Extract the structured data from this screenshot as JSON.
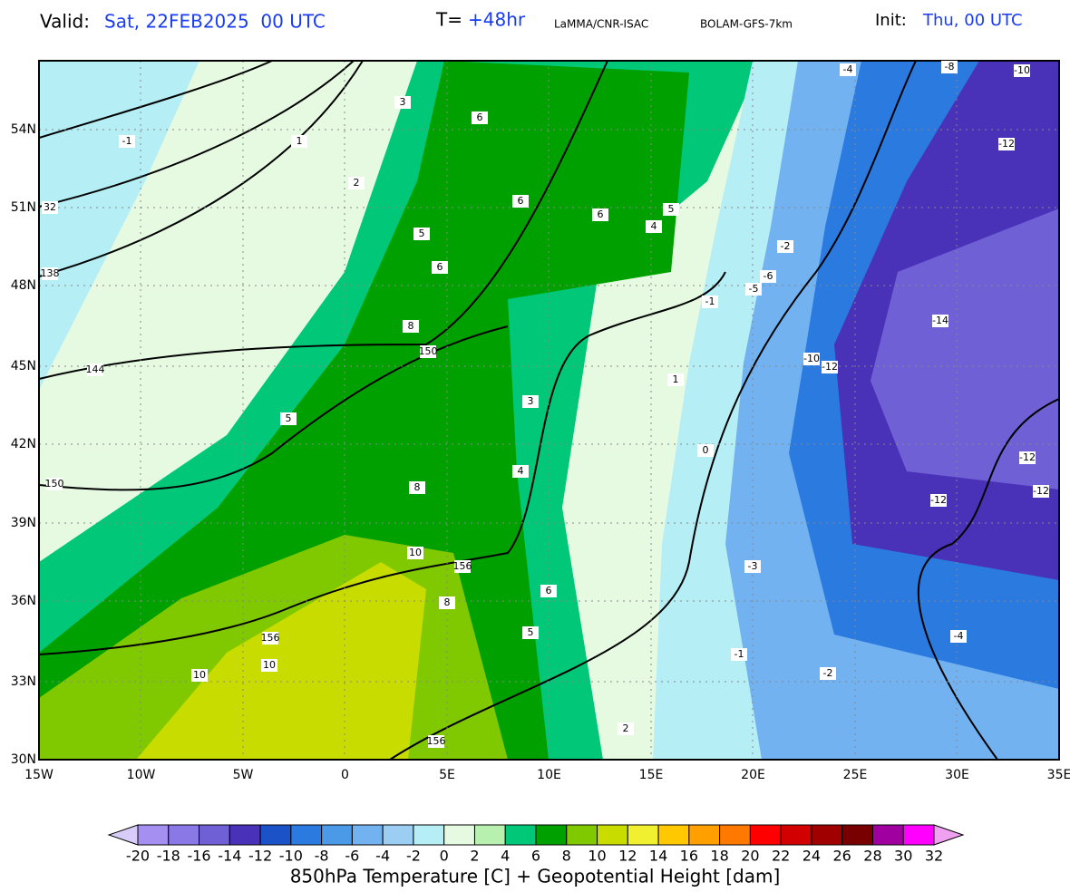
{
  "header": {
    "valid_label": "Valid:",
    "valid_time": "Sat, 22FEB2025  00 UTC",
    "step_label": "T=",
    "step": "+48hr",
    "source": "LaMMA/CNR-ISAC",
    "model": "BOLAM-GFS-7km",
    "init_label": "Init:",
    "init_time": "Thu, 00 UTC"
  },
  "map": {
    "lat_labels": [
      "54N",
      "51N",
      "48N",
      "45N",
      "42N",
      "39N",
      "36N",
      "33N",
      "30N"
    ],
    "lon_labels": [
      "15W",
      "10W",
      "5W",
      "0",
      "5E",
      "10E",
      "15E",
      "20E",
      "25E",
      "30E",
      "35E"
    ],
    "contour_labels": [
      "6",
      "6",
      "6",
      "5",
      "4",
      "5",
      "6",
      "3",
      "2",
      "1",
      "-1",
      "32",
      "138",
      "144",
      "150",
      "150",
      "156",
      "156",
      "156",
      "5",
      "8",
      "8",
      "10",
      "10",
      "10",
      "8",
      "6",
      "5",
      "4",
      "-4",
      "-8",
      "-10",
      "-12",
      "-14",
      "-12",
      "-10",
      "-12",
      "-12",
      "-12",
      "-2",
      "-1",
      "-3",
      "-5",
      "-6",
      "-4",
      "-2",
      "-1",
      "2",
      "3",
      "1",
      "0"
    ]
  },
  "colorbar": {
    "levels": [
      -20,
      -18,
      -16,
      -14,
      -12,
      -10,
      -8,
      -6,
      -4,
      -2,
      0,
      2,
      4,
      6,
      8,
      10,
      12,
      14,
      16,
      18,
      20,
      22,
      24,
      26,
      28,
      30,
      32
    ],
    "colors": [
      "#d8ccf8",
      "#a590f2",
      "#8a78e6",
      "#7060d6",
      "#4a32b8",
      "#1c52c8",
      "#2a7ae0",
      "#4a9ae8",
      "#72b2f0",
      "#9ccef4",
      "#b6eef6",
      "#e6fae2",
      "#b8f0b0",
      "#00c878",
      "#00a000",
      "#80c800",
      "#c8dc00",
      "#f0f030",
      "#ffc800",
      "#ffa000",
      "#ff7800",
      "#ff0000",
      "#d20000",
      "#a00000",
      "#780000",
      "#a000a0",
      "#ff00ff",
      "#f0a0f0"
    ],
    "title": "850hPa Temperature [C] + Geopotential Height [dam]"
  }
}
